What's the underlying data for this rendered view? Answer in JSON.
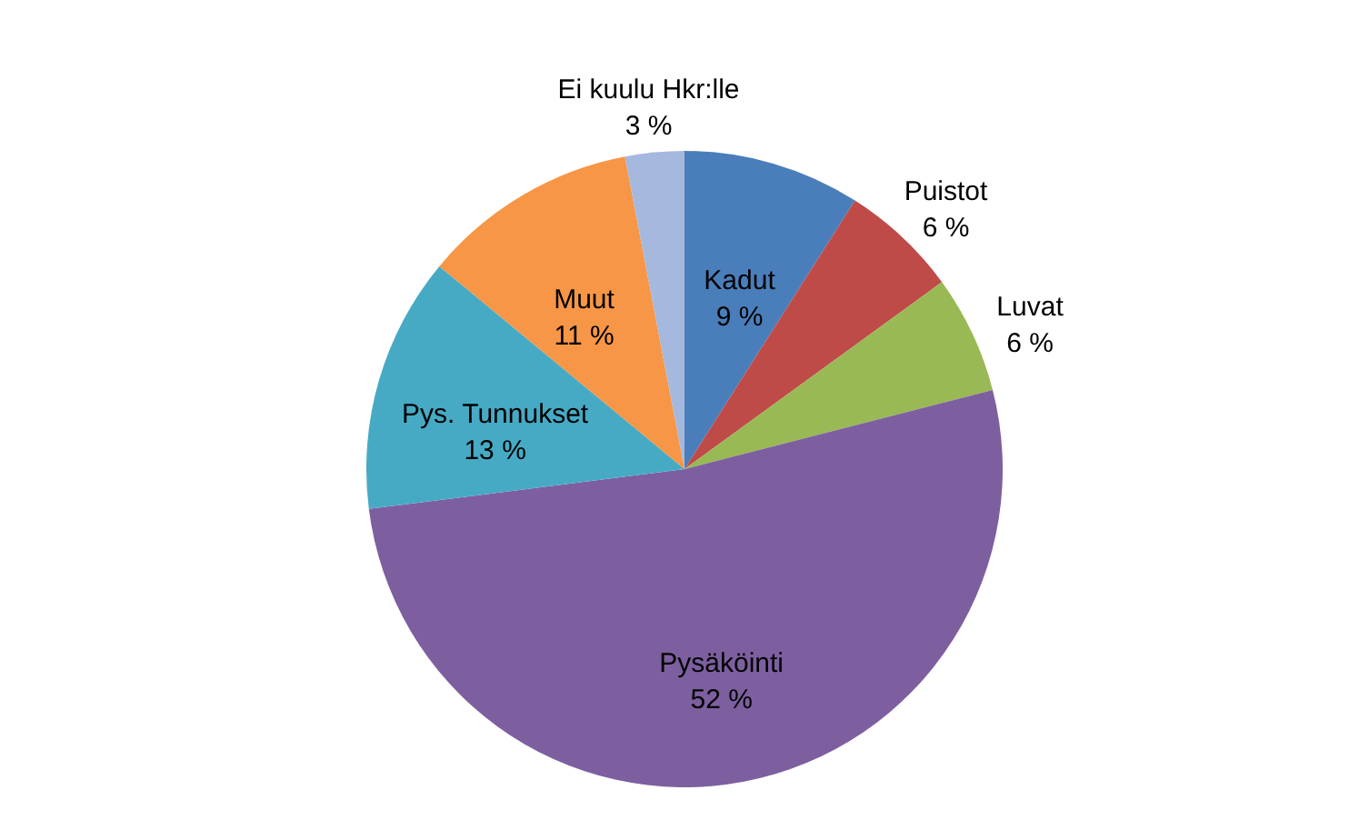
{
  "chart_data": {
    "type": "pie",
    "categories": [
      "Kadut",
      "Puistot",
      "Luvat",
      "Pysäköinti",
      "Pys. Tunnukset",
      "Muut",
      "Ei kuulu Hkr:lle"
    ],
    "values": [
      9,
      6,
      6,
      52,
      13,
      11,
      3
    ],
    "value_labels": [
      "9 %",
      "6 %",
      "6 %",
      "52 %",
      "13 %",
      "11 %",
      "3 %"
    ],
    "colors": [
      "#4a7ebb",
      "#be4b48",
      "#98b954",
      "#7d5fa0",
      "#46aac5",
      "#f79646",
      "#a5b8de"
    ],
    "legend": false
  }
}
